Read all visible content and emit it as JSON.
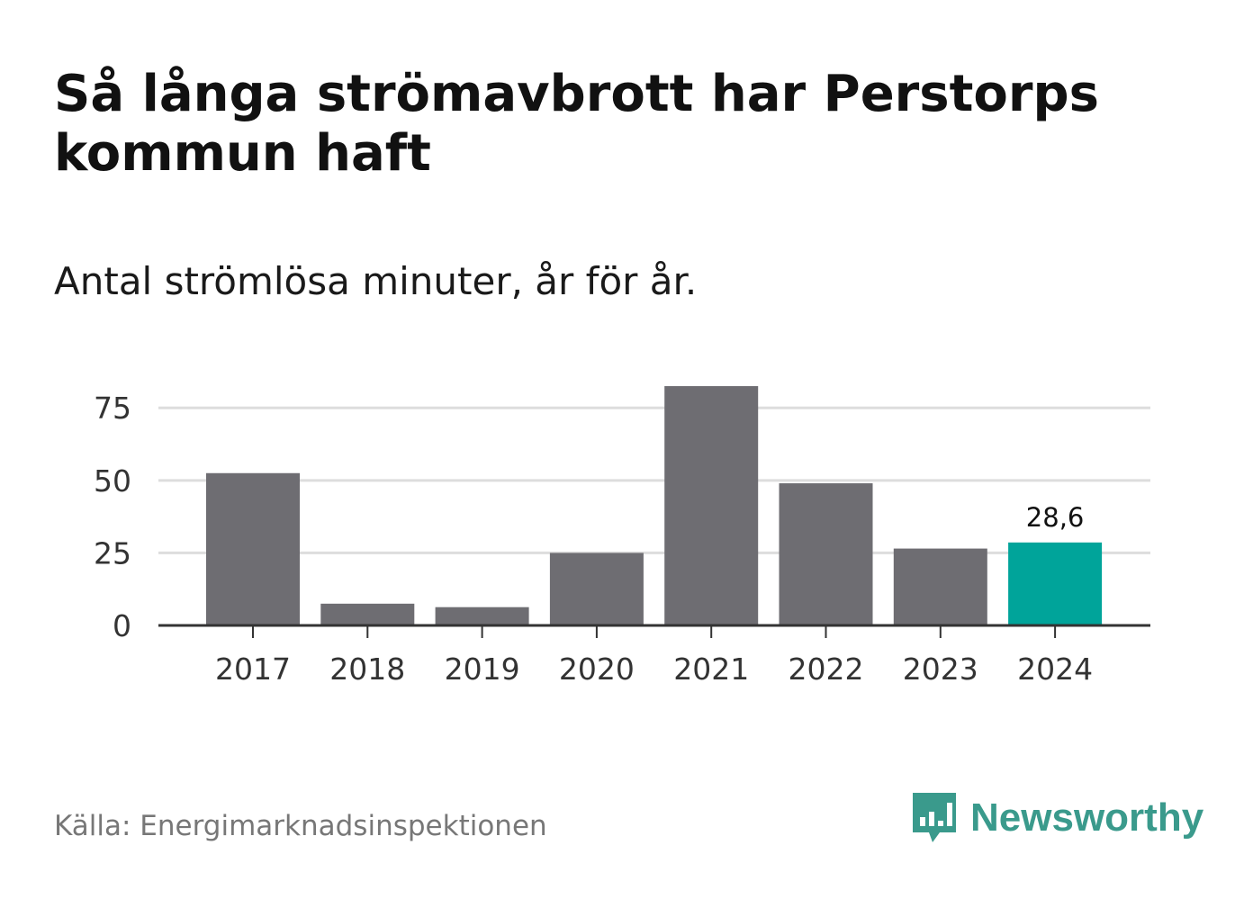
{
  "title": "Så långa strömavbrott har Perstorps kommun haft",
  "subtitle": "Antal strömlösa minuter, år för år.",
  "source": "Källa: Energimarknadsinspektionen",
  "logo": {
    "text": "Newsworthy",
    "icon": "newsworthy-chart-bubble-icon",
    "color": "#3a9a8c"
  },
  "colors": {
    "bar": "#6e6d72",
    "highlight": "#00a49a",
    "grid": "#dddddd",
    "axis": "#333333"
  },
  "chart_data": {
    "type": "bar",
    "title": "Så långa strömavbrott har Perstorps kommun haft",
    "subtitle": "Antal strömlösa minuter, år för år.",
    "categories": [
      "2017",
      "2018",
      "2019",
      "2020",
      "2021",
      "2022",
      "2023",
      "2024"
    ],
    "values": [
      52.5,
      7.5,
      6.3,
      25,
      82.5,
      49,
      26.5,
      28.6
    ],
    "highlight_index": 7,
    "data_labels": [
      {
        "index": 7,
        "text": "28,6"
      }
    ],
    "yticks": [
      0,
      25,
      50,
      75
    ],
    "ylim": [
      0,
      85
    ],
    "xlabel": "",
    "ylabel": "",
    "grid": true
  }
}
